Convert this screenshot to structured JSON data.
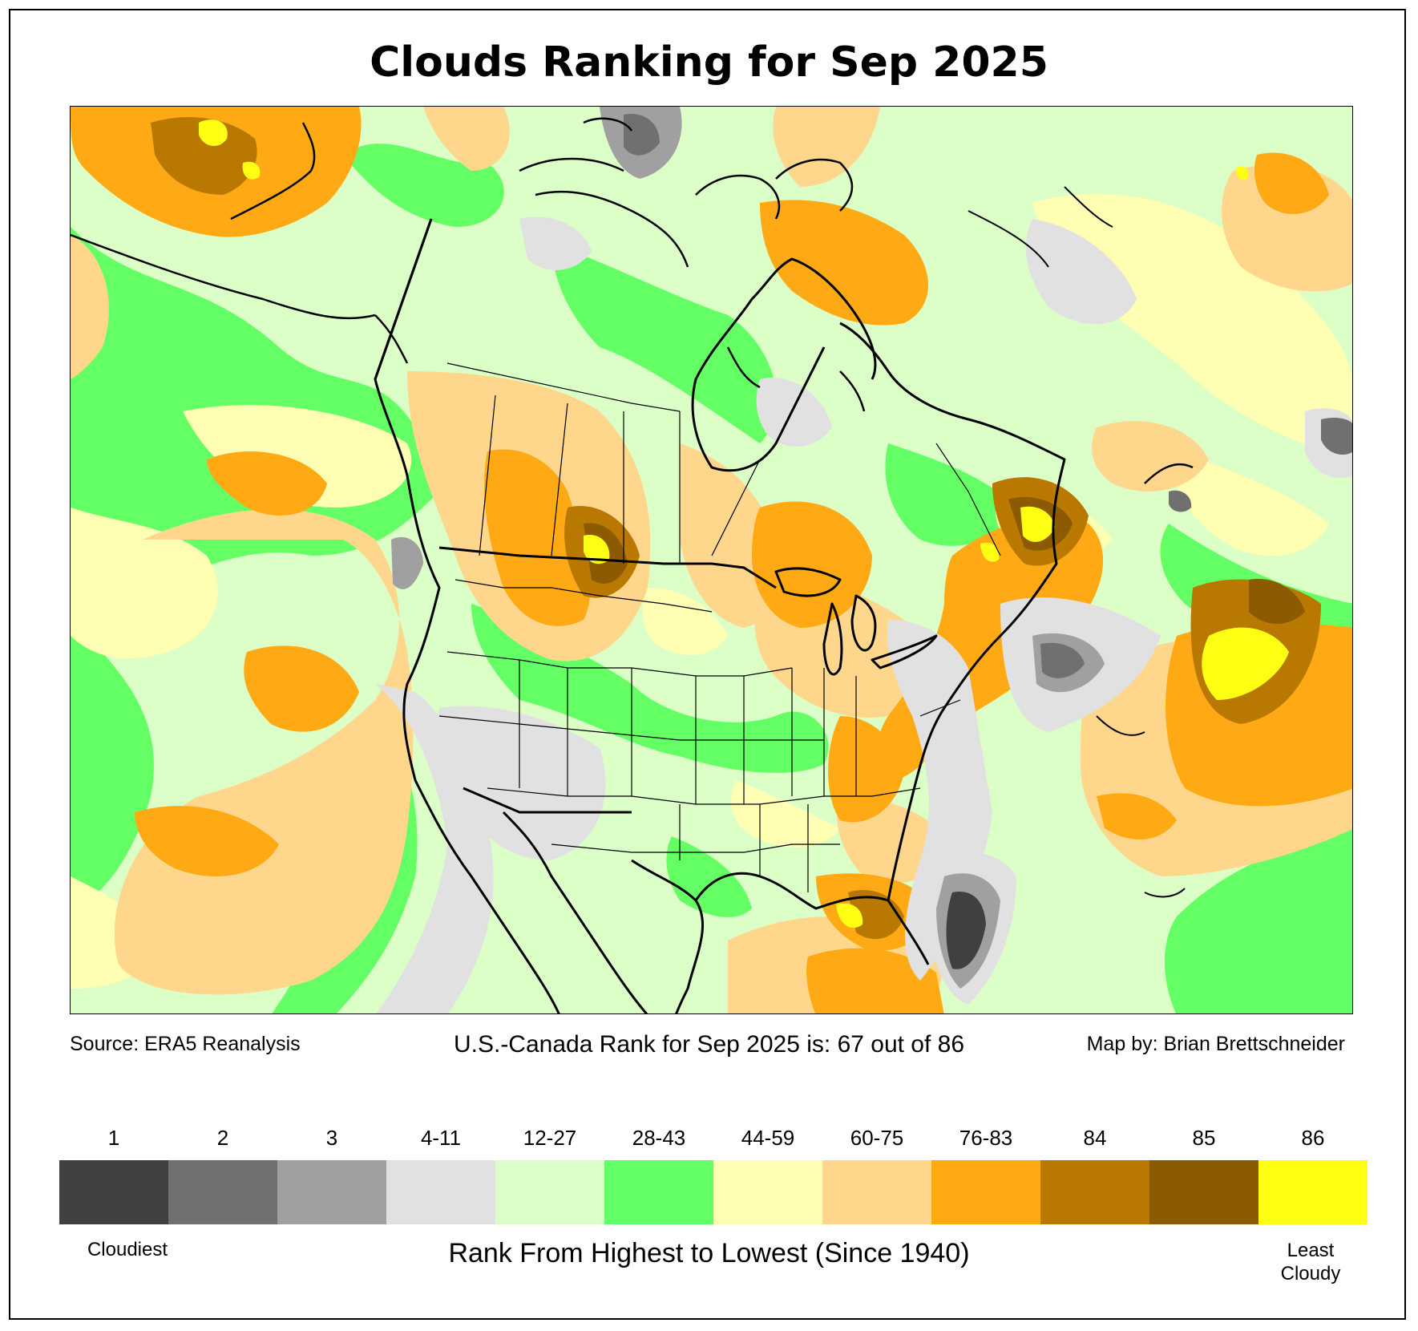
{
  "title": "Clouds Ranking for Sep 2025",
  "footer": {
    "source": "Source: ERA5 Reanalysis",
    "rank_text": "U.S.-Canada Rank for Sep 2025 is: 67 out of 86",
    "credit": "Map by: Brian Brettschneider"
  },
  "legend": {
    "title": "Rank From Highest to Lowest (Since 1940)",
    "low_end": "Cloudiest",
    "high_end_line1": "Least",
    "high_end_line2": "Cloudy",
    "classes": [
      {
        "label": "1",
        "color": "#404040"
      },
      {
        "label": "2",
        "color": "#707070"
      },
      {
        "label": "3",
        "color": "#a0a0a0"
      },
      {
        "label": "4-11",
        "color": "#e1e1e1"
      },
      {
        "label": "12-27",
        "color": "#dcffc8"
      },
      {
        "label": "28-43",
        "color": "#64ff64"
      },
      {
        "label": "44-59",
        "color": "#ffffb4"
      },
      {
        "label": "60-75",
        "color": "#ffd78c"
      },
      {
        "label": "76-83",
        "color": "#ffaa14"
      },
      {
        "label": "84",
        "color": "#b97800"
      },
      {
        "label": "85",
        "color": "#8c5a00"
      },
      {
        "label": "86",
        "color": "#ffff14"
      }
    ]
  }
}
